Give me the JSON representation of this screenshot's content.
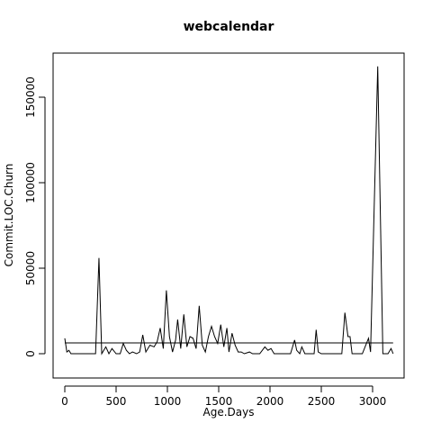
{
  "chart_data": {
    "type": "line",
    "title": "webcalendar",
    "x_label": "Age.Days",
    "y_label": "Commit.LOC.Churn",
    "x": [
      0,
      20,
      40,
      60,
      100,
      200,
      300,
      333,
      360,
      400,
      430,
      460,
      500,
      540,
      570,
      600,
      630,
      660,
      700,
      730,
      760,
      790,
      830,
      870,
      900,
      930,
      960,
      990,
      1020,
      1050,
      1080,
      1100,
      1130,
      1160,
      1190,
      1220,
      1250,
      1280,
      1310,
      1340,
      1370,
      1400,
      1430,
      1460,
      1490,
      1520,
      1550,
      1580,
      1600,
      1630,
      1660,
      1690,
      1720,
      1750,
      1800,
      1830,
      1900,
      1950,
      1980,
      2010,
      2040,
      2100,
      2200,
      2240,
      2260,
      2290,
      2310,
      2340,
      2400,
      2430,
      2450,
      2470,
      2500,
      2600,
      2700,
      2730,
      2760,
      2780,
      2800,
      2900,
      2960,
      2980,
      3050,
      3100,
      3150,
      3180,
      3200
    ],
    "series": [
      {
        "color": "#000000",
        "values": [
          9000,
          1000,
          2000,
          0,
          0,
          0,
          0,
          56000,
          0,
          4000,
          0,
          3000,
          0,
          0,
          6000,
          2000,
          0,
          1000,
          0,
          1000,
          11000,
          1000,
          5000,
          4000,
          7000,
          15000,
          3000,
          37000,
          10000,
          1000,
          8000,
          20000,
          3000,
          23000,
          4000,
          10000,
          9000,
          3000,
          28000,
          5000,
          1000,
          10000,
          16000,
          10000,
          6000,
          17000,
          4000,
          15000,
          1000,
          12000,
          5000,
          1000,
          1000,
          0,
          1000,
          0,
          0,
          4000,
          2000,
          3000,
          0,
          0,
          0,
          8000,
          2000,
          0,
          4000,
          0,
          0,
          0,
          14000,
          1000,
          0,
          0,
          0,
          24000,
          10000,
          10000,
          0,
          0,
          9000,
          1000,
          168000,
          0,
          0,
          3000,
          0
        ]
      }
    ],
    "reference_line": 6300,
    "xlim": [
      -114,
      3307
    ],
    "ylim": [
      -14210,
      175789
    ],
    "xticks": [
      0,
      500,
      1000,
      1500,
      2000,
      2500,
      3000
    ],
    "yticks": [
      0,
      50000,
      100000,
      150000
    ]
  }
}
